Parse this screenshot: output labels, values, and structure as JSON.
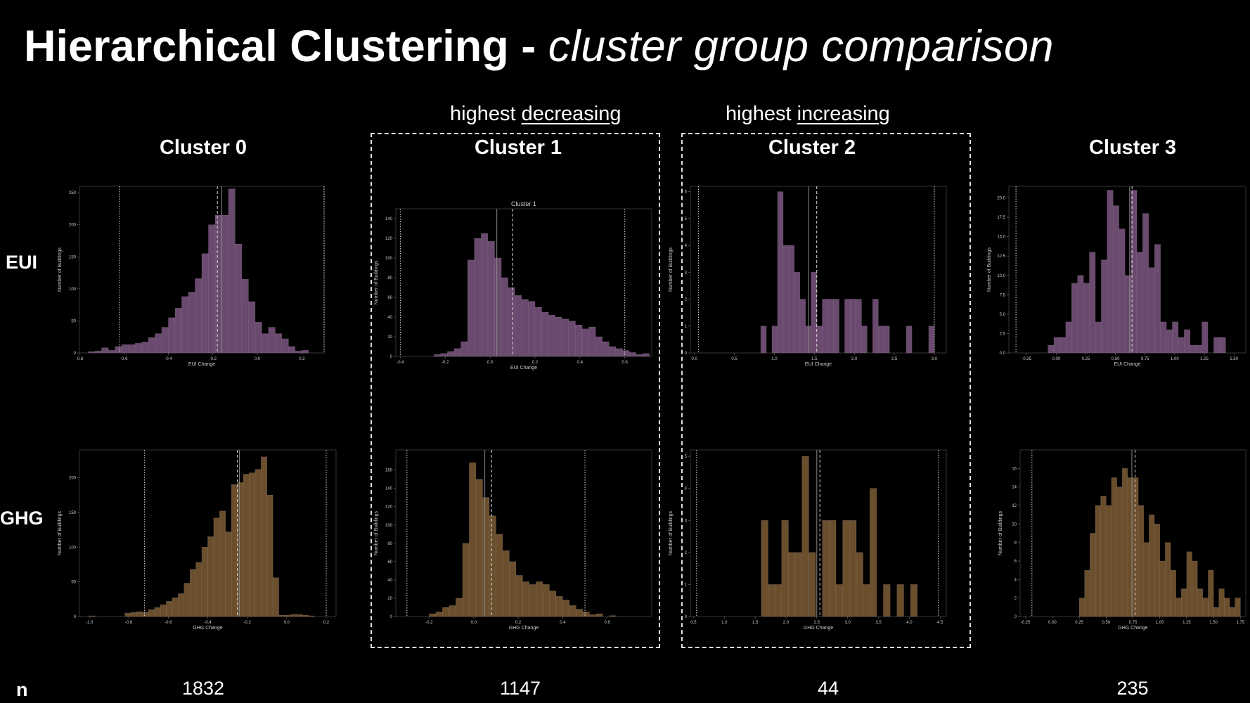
{
  "title": {
    "bold": "Hierarchical Clustering - ",
    "italic": "cluster group comparison"
  },
  "highlights": [
    {
      "prefix": "highest ",
      "word": "decreasing"
    },
    {
      "prefix": "highest ",
      "word": "increasing"
    }
  ],
  "rows": {
    "eui": "EUI",
    "ghg": "GHG",
    "n": "n"
  },
  "clusters": [
    {
      "name": "Cluster 0",
      "n": "1832"
    },
    {
      "name": "Cluster 1",
      "n": "1147"
    },
    {
      "name": "Cluster 2",
      "n": "44"
    },
    {
      "name": "Cluster 3",
      "n": "235"
    }
  ],
  "colors": {
    "eui": "#6a4a6e",
    "ghg": "#6b4f2c",
    "background": "#000000"
  },
  "chart_data": [
    {
      "type": "bar",
      "id": "eui-c0",
      "title": "",
      "xlabel": "EUI Change",
      "ylabel": "Number of Buildings",
      "xlim": [
        -0.8,
        0.3
      ],
      "ylim": [
        0,
        260
      ],
      "xticks": [
        -0.8,
        -0.6,
        -0.4,
        -0.2,
        0.0,
        0.2
      ],
      "xtick_labels": [
        "-0.8",
        "-0.6",
        "-0.4",
        "-0.2",
        "0.0",
        "0.2"
      ],
      "yticks": [
        0,
        50,
        100,
        150,
        200,
        250
      ],
      "bin_start": -0.76,
      "bin_width": 0.03,
      "values": [
        2,
        3,
        8,
        4,
        10,
        13,
        13,
        15,
        17,
        24,
        30,
        40,
        55,
        70,
        88,
        95,
        116,
        155,
        200,
        215,
        215,
        256,
        170,
        115,
        80,
        48,
        30,
        40,
        30,
        22,
        10,
        3,
        4
      ],
      "vlines": [
        {
          "x": -0.62,
          "style": "dotted"
        },
        {
          "x": -0.16,
          "style": "solid"
        },
        {
          "x": -0.18,
          "style": "dashed"
        },
        {
          "x": 0.3,
          "style": "dotted"
        }
      ]
    },
    {
      "type": "bar",
      "id": "eui-c1",
      "title": "Cluster 1",
      "xlabel": "EUI Change",
      "ylabel": "Number of Buildings",
      "xlim": [
        -0.42,
        0.72
      ],
      "ylim": [
        0,
        150
      ],
      "xticks": [
        -0.4,
        -0.2,
        0.0,
        0.2,
        0.4,
        0.6
      ],
      "xtick_labels": [
        "-0.4",
        "-0.2",
        "0.0",
        "0.2",
        "0.4",
        "0.6"
      ],
      "yticks": [
        0,
        20,
        40,
        60,
        80,
        100,
        120,
        140
      ],
      "bin_start": -0.25,
      "bin_width": 0.03,
      "values": [
        2,
        3,
        5,
        8,
        15,
        98,
        120,
        125,
        117,
        100,
        80,
        70,
        62,
        58,
        56,
        50,
        45,
        42,
        40,
        38,
        36,
        32,
        28,
        30,
        20,
        15,
        10,
        8,
        6,
        4,
        2,
        3
      ],
      "vlines": [
        {
          "x": -0.4,
          "style": "dotted"
        },
        {
          "x": 0.03,
          "style": "solid"
        },
        {
          "x": 0.1,
          "style": "dashed"
        },
        {
          "x": 0.6,
          "style": "dotted"
        }
      ]
    },
    {
      "type": "bar",
      "id": "eui-c2",
      "title": "",
      "xlabel": "EUI Change",
      "ylabel": "Number of Buildings",
      "xlim": [
        -0.05,
        3.15
      ],
      "ylim": [
        0,
        6.2
      ],
      "xticks": [
        0.0,
        0.5,
        1.0,
        1.5,
        2.0,
        2.5,
        3.0
      ],
      "xtick_labels": [
        "0.0",
        "0.5",
        "1.0",
        "1.5",
        "2.0",
        "2.5",
        "3.0"
      ],
      "yticks": [
        0,
        1,
        2,
        3,
        4,
        5,
        6
      ],
      "bin_start": 0.83,
      "bin_width": 0.07,
      "values": [
        1,
        0,
        1,
        6,
        4,
        4,
        3,
        2,
        1,
        3,
        1,
        2,
        2,
        2,
        0,
        2,
        2,
        2,
        1,
        0,
        2,
        1,
        1,
        0,
        0,
        0,
        1,
        0,
        0,
        0,
        1,
        0
      ],
      "vlines": [
        {
          "x": 0.05,
          "style": "dotted"
        },
        {
          "x": 1.43,
          "style": "solid"
        },
        {
          "x": 1.53,
          "style": "dashed"
        },
        {
          "x": 3.0,
          "style": "dotted"
        }
      ]
    },
    {
      "type": "bar",
      "id": "eui-c3",
      "title": "",
      "xlabel": "EUI Change",
      "ylabel": "Number of Buildings",
      "xlim": [
        -0.4,
        1.6
      ],
      "ylim": [
        0,
        21.5
      ],
      "xticks": [
        -0.25,
        0.0,
        0.25,
        0.5,
        0.75,
        1.0,
        1.25,
        1.5
      ],
      "xtick_labels": [
        "-0.25",
        "0.00",
        "0.25",
        "0.50",
        "0.75",
        "1.00",
        "1.25",
        "1.50"
      ],
      "yticks": [
        0,
        2.5,
        5,
        7.5,
        10,
        12.5,
        15,
        17.5,
        20
      ],
      "ytick_labels": [
        "0.0",
        "2.5",
        "5.0",
        "7.5",
        "10.0",
        "12.5",
        "15.0",
        "17.5",
        "20.0"
      ],
      "bin_start": -0.07,
      "bin_width": 0.05,
      "values": [
        1,
        2,
        2,
        4,
        9,
        10,
        9,
        13,
        4,
        12,
        21,
        19,
        16,
        10,
        21,
        13,
        18,
        11,
        14,
        4,
        3,
        4,
        2,
        3,
        1,
        1,
        4,
        0,
        2,
        2
      ],
      "vlines": [
        {
          "x": -0.34,
          "style": "dotted"
        },
        {
          "x": 0.62,
          "style": "solid"
        },
        {
          "x": 0.64,
          "style": "dashed"
        }
      ]
    },
    {
      "type": "bar",
      "id": "ghg-c0",
      "title": "",
      "xlabel": "GHG Change",
      "ylabel": "Number of Buildings",
      "xlim": [
        -1.05,
        0.25
      ],
      "ylim": [
        0,
        240
      ],
      "xticks": [
        -1.0,
        -0.8,
        -0.6,
        -0.4,
        -0.2,
        0.0,
        0.2
      ],
      "xtick_labels": [
        "-1.0",
        "-0.8",
        "-0.6",
        "-0.4",
        "-0.2",
        "0.0",
        "0.2"
      ],
      "yticks": [
        0,
        50,
        100,
        150,
        200
      ],
      "bin_start": -1.0,
      "bin_width": 0.03,
      "values": [
        1,
        0,
        0,
        0,
        0,
        0,
        5,
        6,
        7,
        6,
        10,
        13,
        17,
        22,
        27,
        33,
        48,
        68,
        78,
        100,
        115,
        142,
        152,
        122,
        190,
        193,
        205,
        207,
        212,
        230,
        175,
        56,
        2,
        2,
        3,
        3,
        2,
        1
      ],
      "vlines": [
        {
          "x": -0.72,
          "style": "dotted"
        },
        {
          "x": -0.24,
          "style": "solid"
        },
        {
          "x": -0.25,
          "style": "dashed"
        },
        {
          "x": 0.2,
          "style": "dotted"
        }
      ]
    },
    {
      "type": "bar",
      "id": "ghg-c1",
      "title": "",
      "xlabel": "GHG Change",
      "ylabel": "Number of Buildings",
      "xlim": [
        -0.35,
        0.8
      ],
      "ylim": [
        0,
        182
      ],
      "xticks": [
        -0.2,
        0.0,
        0.2,
        0.4,
        0.6
      ],
      "xtick_labels": [
        "-0.2",
        "0.0",
        "0.2",
        "0.4",
        "0.6"
      ],
      "yticks": [
        0,
        20,
        40,
        60,
        80,
        100,
        120,
        140,
        160
      ],
      "bin_start": -0.2,
      "bin_width": 0.03,
      "values": [
        3,
        5,
        10,
        12,
        20,
        80,
        168,
        150,
        130,
        110,
        90,
        72,
        60,
        45,
        38,
        35,
        38,
        35,
        28,
        22,
        18,
        12,
        8,
        5,
        2,
        3,
        0,
        1
      ],
      "vlines": [
        {
          "x": -0.3,
          "style": "dotted"
        },
        {
          "x": 0.05,
          "style": "solid"
        },
        {
          "x": 0.08,
          "style": "dashed"
        },
        {
          "x": 0.5,
          "style": "dotted"
        }
      ]
    },
    {
      "type": "bar",
      "id": "ghg-c2",
      "title": "",
      "xlabel": "GHG Change",
      "ylabel": "Number of Buildings",
      "xlim": [
        0.45,
        4.6
      ],
      "ylim": [
        0,
        5.2
      ],
      "xticks": [
        0.5,
        1.0,
        1.5,
        2.0,
        2.5,
        3.0,
        3.5,
        4.0,
        4.5
      ],
      "xtick_labels": [
        "0.5",
        "1.0",
        "1.5",
        "2.0",
        "2.5",
        "3.0",
        "3.5",
        "4.0",
        "4.5"
      ],
      "yticks": [
        0,
        1,
        2,
        3,
        4,
        5
      ],
      "bin_start": 1.6,
      "bin_width": 0.11,
      "values": [
        3,
        1,
        1,
        3,
        2,
        2,
        5,
        2,
        0,
        3,
        3,
        1,
        3,
        3,
        2,
        1,
        4,
        0,
        1,
        0,
        1,
        0,
        1
      ],
      "vlines": [
        {
          "x": 0.55,
          "style": "dotted"
        },
        {
          "x": 2.5,
          "style": "solid"
        },
        {
          "x": 2.55,
          "style": "dashed"
        },
        {
          "x": 4.47,
          "style": "dotted"
        }
      ]
    },
    {
      "type": "bar",
      "id": "ghg-c3",
      "title": "",
      "xlabel": "GHG Change",
      "ylabel": "Number of Buildings",
      "xlim": [
        -0.3,
        1.8
      ],
      "ylim": [
        0,
        18
      ],
      "xticks": [
        -0.25,
        0.0,
        0.25,
        0.5,
        0.75,
        1.0,
        1.25,
        1.5,
        1.75
      ],
      "xtick_labels": [
        "-0.25",
        "0.00",
        "0.25",
        "0.50",
        "0.75",
        "1.00",
        "1.25",
        "1.50",
        "1.75"
      ],
      "yticks": [
        0,
        2,
        4,
        6,
        8,
        10,
        12,
        14,
        16
      ],
      "bin_start": 0.25,
      "bin_width": 0.05,
      "values": [
        2,
        5,
        9,
        12,
        13,
        12,
        15,
        14,
        16,
        15,
        15,
        12,
        8,
        11,
        10,
        6,
        8,
        5,
        2,
        3,
        7,
        6,
        3,
        2,
        5,
        1,
        3,
        2,
        1,
        2
      ],
      "vlines": [
        {
          "x": -0.19,
          "style": "dotted"
        },
        {
          "x": 0.74,
          "style": "solid"
        },
        {
          "x": 0.77,
          "style": "dashed"
        }
      ]
    }
  ]
}
